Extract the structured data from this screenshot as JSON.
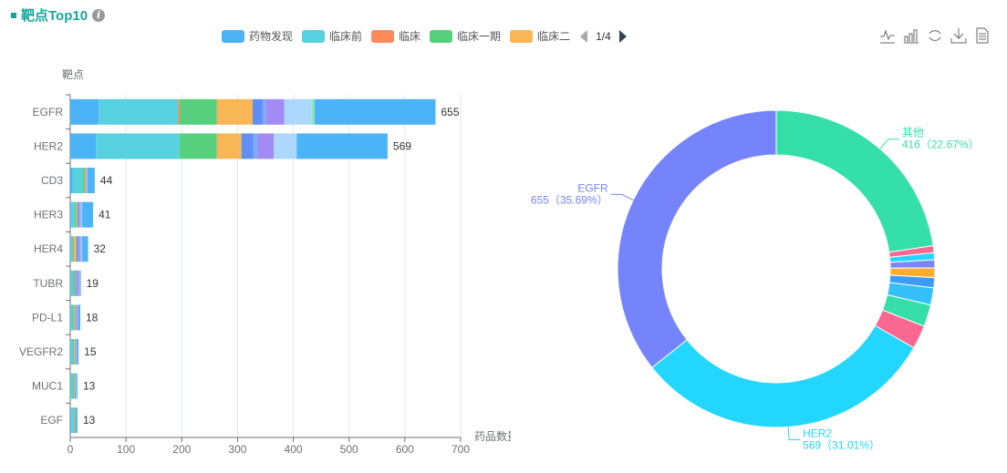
{
  "header": {
    "title": "靶点Top10",
    "info_icon": "info-icon"
  },
  "legend": {
    "items": [
      {
        "name": "药物发现",
        "color": "#4db3f7"
      },
      {
        "name": "临床前",
        "color": "#57d0e0"
      },
      {
        "name": "临床",
        "color": "#fc8a5b"
      },
      {
        "name": "临床一期",
        "color": "#56d07d"
      },
      {
        "name": "临床二",
        "color": "#f8b657"
      }
    ],
    "page": "1/4"
  },
  "toolbox": [
    "line-chart-icon",
    "bar-chart-icon",
    "refresh-icon",
    "download-icon",
    "data-view-icon"
  ],
  "chart_data": [
    {
      "type": "bar",
      "orientation": "horizontal",
      "stacked": true,
      "ylabel": "靶点",
      "xlabel": "药品数量（个）",
      "xlim": [
        0,
        700
      ],
      "xticks": [
        "0",
        "100",
        "200",
        "300",
        "400",
        "500",
        "600",
        "700"
      ],
      "categories": [
        "EGFR",
        "HER2",
        "CD3",
        "HER3",
        "HER4",
        "TUBR",
        "PD-L1",
        "VEGFR2",
        "MUC1",
        "EGF"
      ],
      "totals": [
        "655",
        "569",
        "44",
        "41",
        "32",
        "19",
        "18",
        "15",
        "13",
        "13"
      ],
      "series_colors": [
        "#4db3f7",
        "#57d0e0",
        "#fc8a5b",
        "#56d07d",
        "#f8b657",
        "#5f8ff5",
        "#7aacf5",
        "#a38bf5",
        "#acd7fe",
        "#8de8b7",
        "#4db3f7"
      ],
      "series": [
        {
          "name": "药物发现",
          "values": [
            51,
            46,
            4,
            2,
            1,
            1,
            1,
            1,
            1,
            2
          ]
        },
        {
          "name": "临床前",
          "values": [
            142,
            150,
            18,
            6,
            3,
            4,
            3,
            4,
            3,
            4
          ]
        },
        {
          "name": "临床",
          "values": [
            3,
            0,
            0,
            0,
            1,
            0,
            0,
            0,
            0,
            0
          ]
        },
        {
          "name": "临床一期",
          "values": [
            67,
            67,
            4,
            3,
            2,
            3,
            3,
            2,
            3,
            2
          ]
        },
        {
          "name": "临床二",
          "values": [
            64,
            44,
            2,
            2,
            4,
            1,
            2,
            2,
            1,
            1
          ]
        },
        {
          "name": "",
          "values": [
            18,
            21,
            0,
            2,
            3,
            2,
            1,
            1,
            1,
            0
          ]
        },
        {
          "name": "",
          "values": [
            6,
            8,
            0,
            2,
            2,
            1,
            1,
            1,
            0,
            0
          ]
        },
        {
          "name": "",
          "values": [
            33,
            29,
            2,
            2,
            3,
            4,
            2,
            1,
            1,
            1
          ]
        },
        {
          "name": "",
          "values": [
            49,
            41,
            1,
            2,
            2,
            1,
            1,
            0,
            1,
            0
          ]
        },
        {
          "name": "",
          "values": [
            5,
            0,
            0,
            0,
            0,
            0,
            0,
            0,
            0,
            0
          ]
        },
        {
          "name": "",
          "values": [
            217,
            163,
            13,
            20,
            11,
            2,
            4,
            3,
            2,
            3
          ]
        }
      ]
    },
    {
      "type": "pie",
      "donut": true,
      "slices": [
        {
          "name": "其他",
          "value": 416,
          "pct": "22.67%",
          "color": "#34dfa8",
          "label": "其他",
          "label2": "416（22.67%）"
        },
        {
          "name": "EGF",
          "value": 13,
          "color": "#f96891"
        },
        {
          "name": "MUC1",
          "value": 13,
          "color": "#22d6fd"
        },
        {
          "name": "VEGFR2",
          "value": 15,
          "color": "#7c86fa"
        },
        {
          "name": "PD-L1",
          "value": 18,
          "color": "#fdad2e"
        },
        {
          "name": "TUBR",
          "value": 19,
          "color": "#3b9cf5"
        },
        {
          "name": "HER4",
          "value": 32,
          "color": "#35c0fa"
        },
        {
          "name": "HER3",
          "value": 41,
          "color": "#34dfa8"
        },
        {
          "name": "CD3",
          "value": 44,
          "color": "#f96891"
        },
        {
          "name": "HER2",
          "value": 569,
          "pct": "31.01%",
          "color": "#22d6fd",
          "label": "HER2",
          "label2": "569（31.01%）"
        },
        {
          "name": "EGFR",
          "value": 655,
          "pct": "35.69%",
          "color": "#7584fb",
          "label": "EGFR",
          "label2": "655（35.69%）"
        }
      ]
    }
  ]
}
